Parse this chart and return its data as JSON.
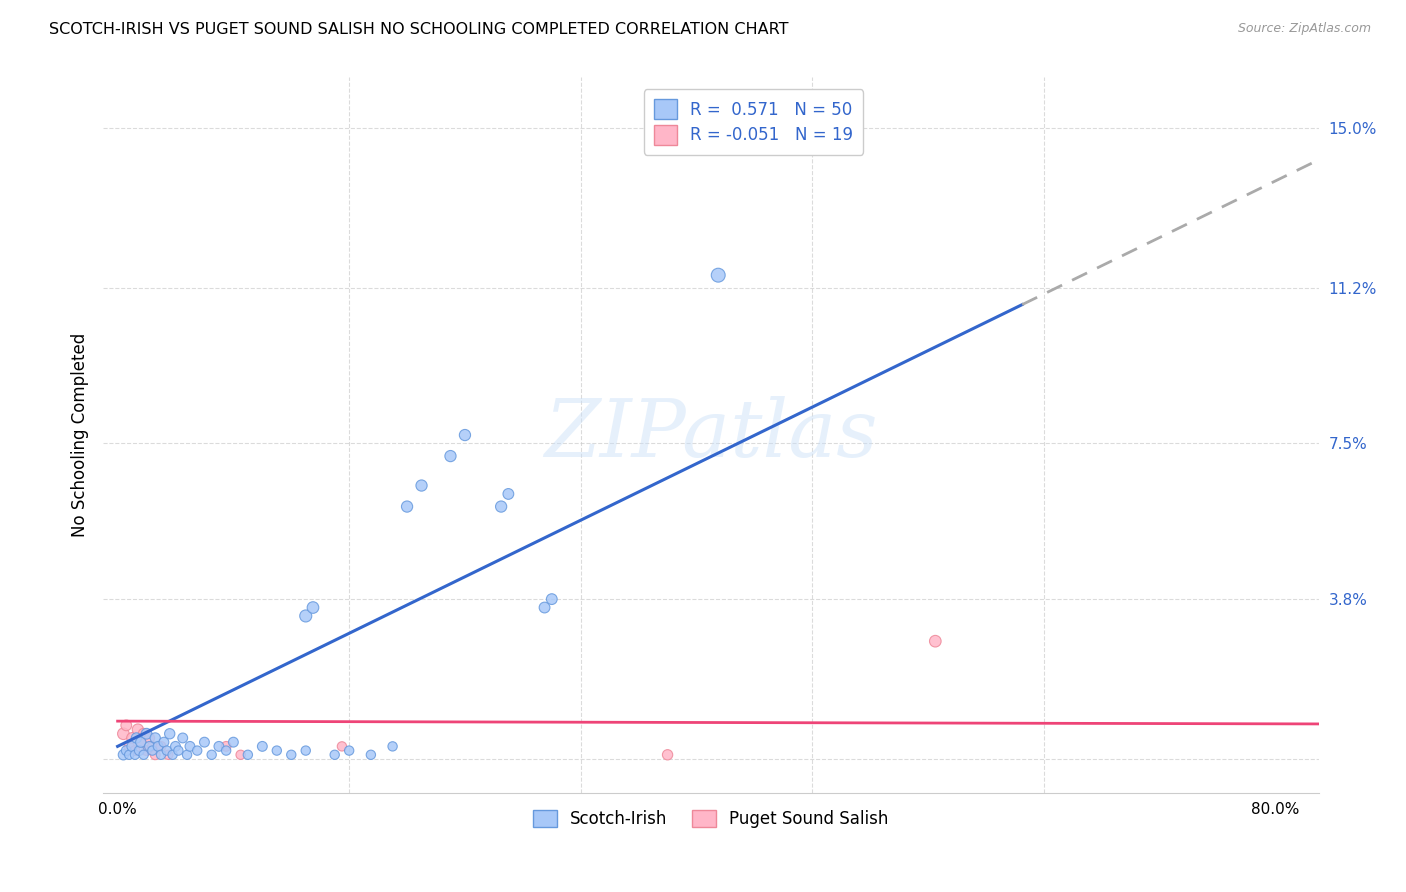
{
  "title": "SCOTCH-IRISH VS PUGET SOUND SALISH NO SCHOOLING COMPLETED CORRELATION CHART",
  "source": "Source: ZipAtlas.com",
  "ylabel": "No Schooling Completed",
  "y_ticks": [
    0.0,
    0.038,
    0.075,
    0.112,
    0.15
  ],
  "y_tick_labels": [
    "",
    "3.8%",
    "7.5%",
    "11.2%",
    "15.0%"
  ],
  "x_ticks": [
    0.0,
    0.16,
    0.32,
    0.48,
    0.64,
    0.8
  ],
  "x_tick_labels": [
    "0.0%",
    "",
    "",
    "",
    "",
    "80.0%"
  ],
  "xlim": [
    -0.01,
    0.83
  ],
  "ylim": [
    -0.008,
    0.162
  ],
  "background_color": "#ffffff",
  "grid_color": "#cccccc",
  "watermark": "ZIPatlas",
  "legend_entries": [
    {
      "label": "R =  0.571   N = 50"
    },
    {
      "label": "R = -0.051   N = 19"
    }
  ],
  "legend_bottom": [
    "Scotch-Irish",
    "Puget Sound Salish"
  ],
  "blue_line_slope": 0.168,
  "blue_line_intercept": 0.003,
  "blue_line_solid_end": 0.625,
  "blue_line_dash_end": 0.83,
  "pink_line_slope": -0.0008,
  "pink_line_intercept": 0.009,
  "pink_line_start": 0.0,
  "pink_line_end": 0.83,
  "scotch_irish_points": [
    [
      0.004,
      0.001
    ],
    [
      0.006,
      0.002
    ],
    [
      0.008,
      0.001
    ],
    [
      0.01,
      0.003
    ],
    [
      0.012,
      0.001
    ],
    [
      0.013,
      0.005
    ],
    [
      0.015,
      0.002
    ],
    [
      0.016,
      0.004
    ],
    [
      0.018,
      0.001
    ],
    [
      0.02,
      0.006
    ],
    [
      0.022,
      0.003
    ],
    [
      0.024,
      0.002
    ],
    [
      0.026,
      0.005
    ],
    [
      0.028,
      0.003
    ],
    [
      0.03,
      0.001
    ],
    [
      0.032,
      0.004
    ],
    [
      0.034,
      0.002
    ],
    [
      0.036,
      0.006
    ],
    [
      0.038,
      0.001
    ],
    [
      0.04,
      0.003
    ],
    [
      0.042,
      0.002
    ],
    [
      0.045,
      0.005
    ],
    [
      0.048,
      0.001
    ],
    [
      0.05,
      0.003
    ],
    [
      0.055,
      0.002
    ],
    [
      0.06,
      0.004
    ],
    [
      0.065,
      0.001
    ],
    [
      0.07,
      0.003
    ],
    [
      0.075,
      0.002
    ],
    [
      0.08,
      0.004
    ],
    [
      0.09,
      0.001
    ],
    [
      0.1,
      0.003
    ],
    [
      0.11,
      0.002
    ],
    [
      0.12,
      0.001
    ],
    [
      0.13,
      0.002
    ],
    [
      0.15,
      0.001
    ],
    [
      0.16,
      0.002
    ],
    [
      0.175,
      0.001
    ],
    [
      0.19,
      0.003
    ],
    [
      0.13,
      0.034
    ],
    [
      0.135,
      0.036
    ],
    [
      0.2,
      0.06
    ],
    [
      0.21,
      0.065
    ],
    [
      0.23,
      0.072
    ],
    [
      0.24,
      0.077
    ],
    [
      0.265,
      0.06
    ],
    [
      0.27,
      0.063
    ],
    [
      0.295,
      0.036
    ],
    [
      0.3,
      0.038
    ],
    [
      0.415,
      0.115
    ]
  ],
  "scotch_irish_sizes": [
    22,
    20,
    18,
    22,
    18,
    22,
    20,
    22,
    18,
    24,
    20,
    18,
    22,
    20,
    18,
    20,
    18,
    22,
    18,
    20,
    18,
    20,
    18,
    20,
    18,
    20,
    18,
    20,
    18,
    20,
    18,
    20,
    18,
    18,
    18,
    18,
    18,
    18,
    18,
    30,
    28,
    26,
    26,
    26,
    26,
    26,
    24,
    24,
    24,
    40
  ],
  "puget_points": [
    [
      0.004,
      0.006
    ],
    [
      0.006,
      0.008
    ],
    [
      0.008,
      0.003
    ],
    [
      0.01,
      0.005
    ],
    [
      0.012,
      0.002
    ],
    [
      0.014,
      0.007
    ],
    [
      0.016,
      0.004
    ],
    [
      0.018,
      0.006
    ],
    [
      0.02,
      0.002
    ],
    [
      0.022,
      0.005
    ],
    [
      0.024,
      0.003
    ],
    [
      0.026,
      0.001
    ],
    [
      0.03,
      0.003
    ],
    [
      0.035,
      0.001
    ],
    [
      0.075,
      0.003
    ],
    [
      0.085,
      0.001
    ],
    [
      0.155,
      0.003
    ],
    [
      0.38,
      0.001
    ],
    [
      0.565,
      0.028
    ]
  ],
  "puget_sizes": [
    28,
    24,
    22,
    24,
    20,
    26,
    22,
    24,
    20,
    22,
    20,
    20,
    20,
    18,
    20,
    18,
    18,
    22,
    28
  ],
  "blue_line_color": "#3366cc",
  "pink_line_color": "#ee4477",
  "dashed_line_color": "#aaaaaa",
  "scatter_blue_face": "#a8c8f8",
  "scatter_blue_edge": "#6699dd",
  "scatter_pink_face": "#ffb6c8",
  "scatter_pink_edge": "#ee8899"
}
